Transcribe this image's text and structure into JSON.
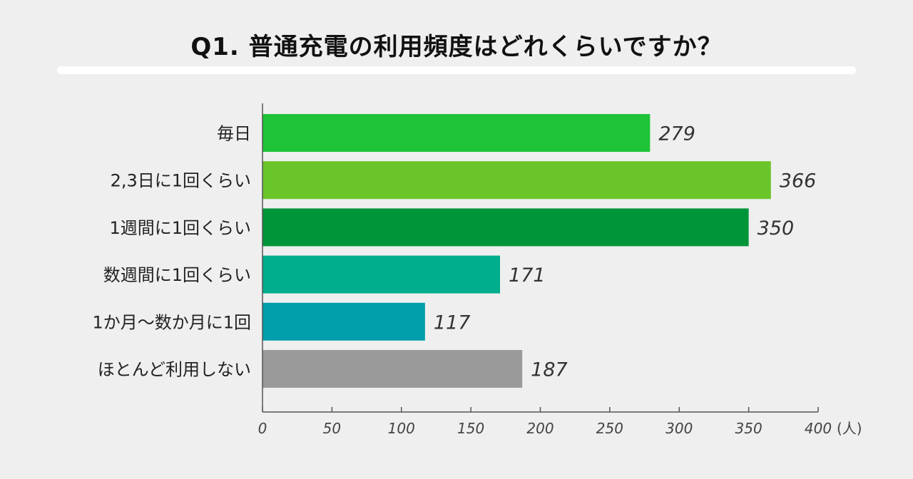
{
  "chart_data": {
    "type": "bar",
    "orientation": "horizontal",
    "title": "Q1. 普通充電の利用頻度はどれくらいですか？",
    "categories": [
      "毎日",
      "2,3日に1回くらい",
      "1週間に1回くらい",
      "数週間に1回くらい",
      "1か月〜数か月に1回",
      "ほとんど利用しない"
    ],
    "values": [
      279,
      366,
      350,
      171,
      117,
      187
    ],
    "value_labels": [
      "279",
      "366",
      "350",
      "171",
      "117",
      "187"
    ],
    "colors": [
      "#1ec337",
      "#6ac52a",
      "#009539",
      "#00ad8c",
      "#009fab",
      "#9a9a9a"
    ],
    "xlim": [
      0,
      400
    ],
    "xticks": [
      0,
      50,
      100,
      150,
      200,
      250,
      300,
      350,
      400
    ],
    "tick_labels": [
      "0",
      "50",
      "100",
      "150",
      "200",
      "250",
      "300",
      "350",
      "400"
    ],
    "unit": "(人)",
    "grid": false,
    "legend": "none"
  }
}
